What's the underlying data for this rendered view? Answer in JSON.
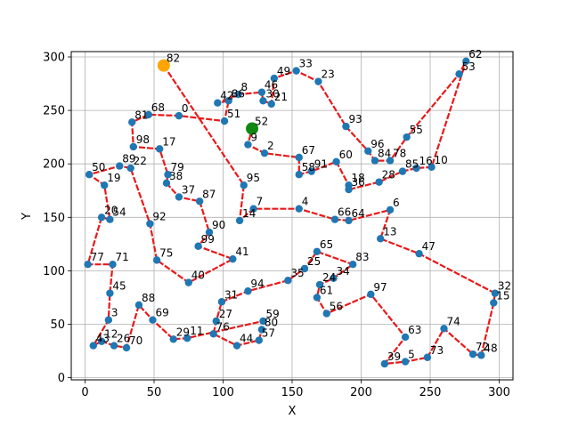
{
  "chart_data": {
    "type": "scatter",
    "title": "",
    "xlabel": "X",
    "ylabel": "Y",
    "xlim": [
      -10,
      310
    ],
    "ylim": [
      -2,
      305
    ],
    "xticks": [
      0,
      50,
      100,
      150,
      200,
      250,
      300
    ],
    "yticks": [
      0,
      50,
      100,
      150,
      200,
      250,
      300
    ],
    "grid": true,
    "colors": {
      "point": "#1f77b4",
      "route": "#e8191a",
      "start": "#ffa500",
      "depot": "#118811",
      "grid": "#b0b0b0"
    },
    "points": [
      {
        "id": "0",
        "x": 68,
        "y": 245
      },
      {
        "id": "2",
        "x": 130,
        "y": 210
      },
      {
        "id": "3",
        "x": 17,
        "y": 54
      },
      {
        "id": "4",
        "x": 155,
        "y": 158
      },
      {
        "id": "5",
        "x": 232,
        "y": 15
      },
      {
        "id": "6",
        "x": 221,
        "y": 157
      },
      {
        "id": "7",
        "x": 122,
        "y": 158
      },
      {
        "id": "8",
        "x": 111,
        "y": 265
      },
      {
        "id": "9",
        "x": 118,
        "y": 218
      },
      {
        "id": "10",
        "x": 251,
        "y": 197
      },
      {
        "id": "11",
        "x": 74,
        "y": 37
      },
      {
        "id": "12",
        "x": 12,
        "y": 34
      },
      {
        "id": "13",
        "x": 214,
        "y": 130
      },
      {
        "id": "14",
        "x": 112,
        "y": 147
      },
      {
        "id": "15",
        "x": 296,
        "y": 70
      },
      {
        "id": "16",
        "x": 240,
        "y": 196
      },
      {
        "id": "17",
        "x": 54,
        "y": 214
      },
      {
        "id": "18",
        "x": 191,
        "y": 180
      },
      {
        "id": "19",
        "x": 14,
        "y": 180
      },
      {
        "id": "20",
        "x": 12,
        "y": 150
      },
      {
        "id": "21",
        "x": 135,
        "y": 256
      },
      {
        "id": "22",
        "x": 33,
        "y": 196
      },
      {
        "id": "23",
        "x": 169,
        "y": 277
      },
      {
        "id": "24",
        "x": 170,
        "y": 87
      },
      {
        "id": "25",
        "x": 159,
        "y": 102
      },
      {
        "id": "26",
        "x": 21,
        "y": 30
      },
      {
        "id": "27",
        "x": 95,
        "y": 53
      },
      {
        "id": "28",
        "x": 213,
        "y": 183
      },
      {
        "id": "29",
        "x": 64,
        "y": 36
      },
      {
        "id": "30",
        "x": 129,
        "y": 259
      },
      {
        "id": "31",
        "x": 99,
        "y": 71
      },
      {
        "id": "32",
        "x": 297,
        "y": 79
      },
      {
        "id": "33",
        "x": 153,
        "y": 287
      },
      {
        "id": "34",
        "x": 180,
        "y": 93
      },
      {
        "id": "35",
        "x": 147,
        "y": 91
      },
      {
        "id": "36",
        "x": 191,
        "y": 176
      },
      {
        "id": "37",
        "x": 68,
        "y": 169
      },
      {
        "id": "38",
        "x": 59,
        "y": 182
      },
      {
        "id": "39",
        "x": 217,
        "y": 13
      },
      {
        "id": "40",
        "x": 75,
        "y": 89
      },
      {
        "id": "41",
        "x": 107,
        "y": 111
      },
      {
        "id": "42",
        "x": 96,
        "y": 257
      },
      {
        "id": "43",
        "x": 6,
        "y": 30
      },
      {
        "id": "44",
        "x": 110,
        "y": 30
      },
      {
        "id": "45",
        "x": 18,
        "y": 79
      },
      {
        "id": "46",
        "x": 128,
        "y": 267
      },
      {
        "id": "47",
        "x": 242,
        "y": 116
      },
      {
        "id": "48",
        "x": 287,
        "y": 21
      },
      {
        "id": "49",
        "x": 137,
        "y": 280
      },
      {
        "id": "50",
        "x": 3,
        "y": 190
      },
      {
        "id": "51",
        "x": 101,
        "y": 240
      },
      {
        "id": "52",
        "x": 121,
        "y": 233
      },
      {
        "id": "53",
        "x": 271,
        "y": 284
      },
      {
        "id": "54",
        "x": 18,
        "y": 148
      },
      {
        "id": "55",
        "x": 233,
        "y": 225
      },
      {
        "id": "56",
        "x": 175,
        "y": 60
      },
      {
        "id": "57",
        "x": 126,
        "y": 35
      },
      {
        "id": "58",
        "x": 155,
        "y": 190
      },
      {
        "id": "59",
        "x": 129,
        "y": 53
      },
      {
        "id": "60",
        "x": 182,
        "y": 202
      },
      {
        "id": "61",
        "x": 168,
        "y": 75
      },
      {
        "id": "62",
        "x": 276,
        "y": 296
      },
      {
        "id": "63",
        "x": 232,
        "y": 38
      },
      {
        "id": "64",
        "x": 191,
        "y": 147
      },
      {
        "id": "65",
        "x": 168,
        "y": 118
      },
      {
        "id": "66",
        "x": 181,
        "y": 148
      },
      {
        "id": "67",
        "x": 155,
        "y": 206
      },
      {
        "id": "68",
        "x": 46,
        "y": 246
      },
      {
        "id": "69",
        "x": 49,
        "y": 54
      },
      {
        "id": "70",
        "x": 30,
        "y": 28
      },
      {
        "id": "71",
        "x": 20,
        "y": 106
      },
      {
        "id": "72",
        "x": 281,
        "y": 22
      },
      {
        "id": "73",
        "x": 248,
        "y": 19
      },
      {
        "id": "74",
        "x": 260,
        "y": 46
      },
      {
        "id": "75",
        "x": 52,
        "y": 110
      },
      {
        "id": "76",
        "x": 93,
        "y": 41
      },
      {
        "id": "77",
        "x": 2,
        "y": 106
      },
      {
        "id": "78",
        "x": 221,
        "y": 203
      },
      {
        "id": "79",
        "x": 60,
        "y": 190
      },
      {
        "id": "80",
        "x": 128,
        "y": 45
      },
      {
        "id": "81",
        "x": 34,
        "y": 239
      },
      {
        "id": "82",
        "x": 57,
        "y": 292
      },
      {
        "id": "83",
        "x": 194,
        "y": 106
      },
      {
        "id": "84",
        "x": 210,
        "y": 203
      },
      {
        "id": "85",
        "x": 230,
        "y": 193
      },
      {
        "id": "86",
        "x": 104,
        "y": 259
      },
      {
        "id": "87",
        "x": 83,
        "y": 165
      },
      {
        "id": "88",
        "x": 39,
        "y": 68
      },
      {
        "id": "89",
        "x": 25,
        "y": 198
      },
      {
        "id": "90",
        "x": 90,
        "y": 136
      },
      {
        "id": "91",
        "x": 164,
        "y": 193
      },
      {
        "id": "92",
        "x": 47,
        "y": 144
      },
      {
        "id": "93",
        "x": 189,
        "y": 235
      },
      {
        "id": "94",
        "x": 118,
        "y": 81
      },
      {
        "id": "95",
        "x": 115,
        "y": 180
      },
      {
        "id": "96",
        "x": 205,
        "y": 212
      },
      {
        "id": "97",
        "x": 207,
        "y": 78
      },
      {
        "id": "98",
        "x": 35,
        "y": 216
      },
      {
        "id": "99",
        "x": 82,
        "y": 123
      }
    ],
    "start": {
      "id": "82",
      "x": 57,
      "y": 292
    },
    "depot": {
      "id": "52",
      "x": 121,
      "y": 233
    },
    "route": [
      "82",
      "95",
      "14",
      "7",
      "4",
      "66",
      "64",
      "6",
      "13",
      "47",
      "32",
      "15",
      "48",
      "72",
      "74",
      "73",
      "5",
      "39",
      "63",
      "97",
      "56",
      "61",
      "24",
      "34",
      "83",
      "65",
      "25",
      "35",
      "94",
      "31",
      "27",
      "76",
      "44",
      "57",
      "80",
      "59",
      "11",
      "29",
      "69",
      "88",
      "70",
      "26",
      "12",
      "43",
      "3",
      "45",
      "71",
      "77",
      "20",
      "54",
      "19",
      "50",
      "89",
      "22",
      "92",
      "75",
      "40",
      "41",
      "99",
      "90",
      "87",
      "37",
      "38",
      "79",
      "17",
      "98",
      "81",
      "68",
      "0",
      "51",
      "86",
      "42",
      "8",
      "46",
      "30",
      "21",
      "49",
      "33",
      "23",
      "93",
      "96",
      "84",
      "78",
      "55",
      "53",
      "62",
      "10",
      "16",
      "85",
      "28",
      "36",
      "18",
      "60",
      "91",
      "58",
      "67",
      "2",
      "9",
      "52"
    ]
  }
}
